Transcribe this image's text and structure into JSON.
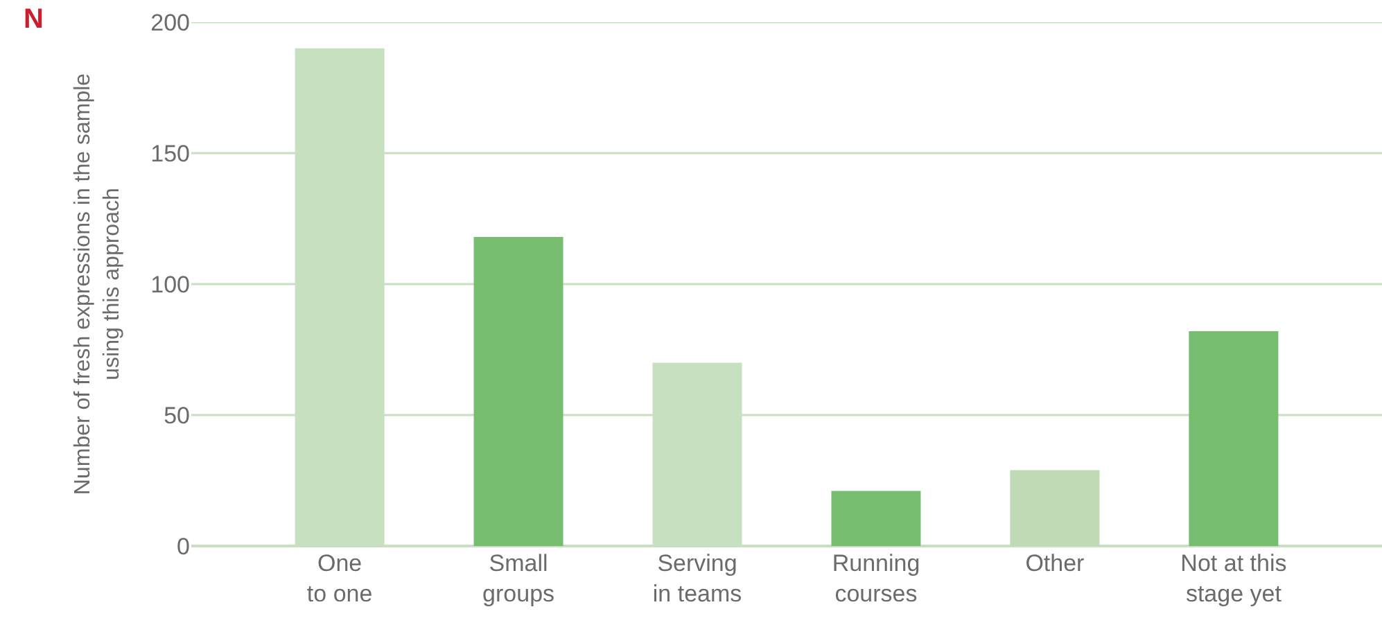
{
  "chart_data": {
    "type": "bar",
    "ylabel": "Number of fresh expressions in the sample\nusing this approach",
    "annotations": [
      "N"
    ],
    "categories": [
      "One\nto one",
      "Small\ngroups",
      "Serving\nin teams",
      "Running\ncourses",
      "Other",
      "Not at this\nstage yet"
    ],
    "values": [
      190,
      118,
      70,
      21,
      29,
      82
    ],
    "colors": [
      "#c6e0c0",
      "#77bd6f",
      "#c6e0c0",
      "#77bd6f",
      "#bfdab5",
      "#77bd6f"
    ],
    "ylim": [
      0,
      200
    ],
    "yticks": [
      0,
      50,
      100,
      150,
      200
    ],
    "grid": "y"
  }
}
